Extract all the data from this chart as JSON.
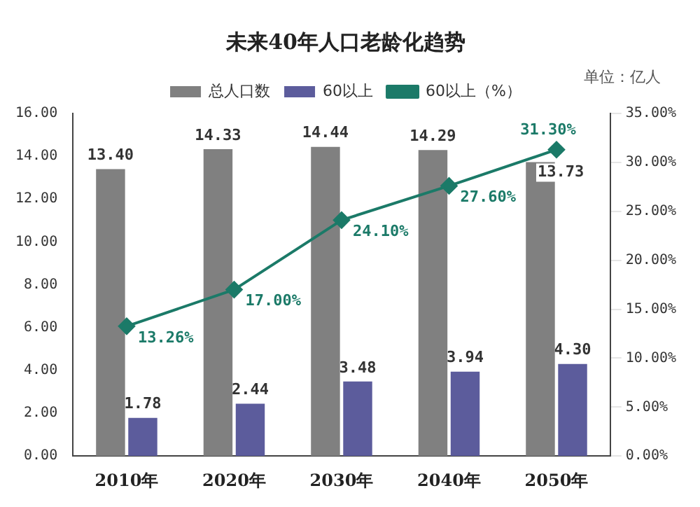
{
  "chart_data": {
    "type": "bar",
    "title": "未来40年人口老龄化趋势",
    "annotations": [
      "单位：亿人"
    ],
    "categories": [
      "2010年",
      "2020年",
      "2030年",
      "2040年",
      "2050年"
    ],
    "series": [
      {
        "name": "总人口数",
        "color": "#808080",
        "values": [
          13.4,
          14.33,
          14.44,
          14.29,
          13.73
        ],
        "value_labels": [
          "13.40",
          "14.33",
          "14.44",
          "14.29",
          "13.73"
        ]
      },
      {
        "name": "60以上",
        "color": "#5c5c9c",
        "values": [
          1.78,
          2.44,
          3.48,
          3.94,
          4.3
        ],
        "value_labels": [
          "1.78",
          "2.44",
          "3.48",
          "3.94",
          "4.30"
        ]
      },
      {
        "name": "60以上（%）",
        "type": "line",
        "axis": "y2",
        "color": "#1b7a68",
        "marker": "diamond",
        "values": [
          13.26,
          17.0,
          24.1,
          27.6,
          31.3
        ],
        "value_labels": [
          "13.26%",
          "17.00%",
          "24.10%",
          "27.60%",
          "31.30%"
        ]
      }
    ],
    "ylim": [
      0,
      16
    ],
    "yticks": [
      {
        "value": 0,
        "label": "0.00"
      },
      {
        "value": 2,
        "label": "2.00"
      },
      {
        "value": 4,
        "label": "4.00"
      },
      {
        "value": 6,
        "label": "6.00"
      },
      {
        "value": 8,
        "label": "8.00"
      },
      {
        "value": 10,
        "label": "10.00"
      },
      {
        "value": 12,
        "label": "12.00"
      },
      {
        "value": 14,
        "label": "14.00"
      },
      {
        "value": 16,
        "label": "16.00"
      }
    ],
    "y2lim": [
      0,
      35
    ],
    "y2ticks": [
      {
        "value": 0,
        "label": "0.00%"
      },
      {
        "value": 5,
        "label": "5.00%"
      },
      {
        "value": 10,
        "label": "10.00%"
      },
      {
        "value": 15,
        "label": "15.00%"
      },
      {
        "value": 20,
        "label": "20.00%"
      },
      {
        "value": 25,
        "label": "25.00%"
      },
      {
        "value": 30,
        "label": "30.00%"
      },
      {
        "value": 35,
        "label": "35.00%"
      }
    ],
    "grid": false,
    "legend": "top"
  }
}
